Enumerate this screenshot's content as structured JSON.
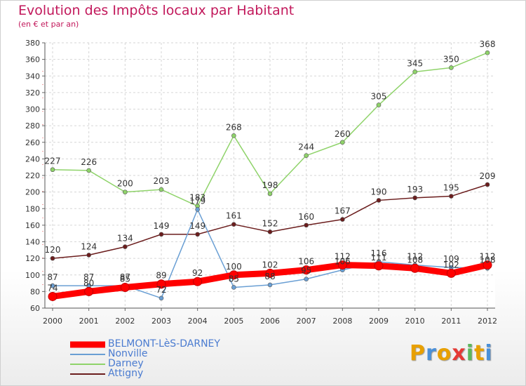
{
  "title": "Evolution des Impôts locaux par Habitant",
  "subtitle": "(en € et par an)",
  "logo_letters": [
    {
      "ch": "P",
      "color": "#e8a000"
    },
    {
      "ch": "r",
      "color": "#4a90d9"
    },
    {
      "ch": "o",
      "color": "#e8a000"
    },
    {
      "ch": "x",
      "color": "#e53935"
    },
    {
      "ch": "i",
      "color": "#5cb85c"
    },
    {
      "ch": "t",
      "color": "#e8a000"
    },
    {
      "ch": "i",
      "color": "#4a90d9"
    }
  ],
  "chart_data": {
    "type": "line",
    "x": [
      "2000",
      "2001",
      "2002",
      "2003",
      "2004",
      "2005",
      "2006",
      "2007",
      "2008",
      "2009",
      "2010",
      "2011",
      "2012"
    ],
    "ylim": [
      60,
      380
    ],
    "yticks": [
      60,
      80,
      100,
      120,
      140,
      160,
      180,
      200,
      220,
      240,
      260,
      280,
      300,
      320,
      340,
      360,
      380
    ],
    "grid": true,
    "legend_position": "bottom-left",
    "series": [
      {
        "name": "BELMONT-LèS-DARNEY",
        "color": "#ff0000",
        "line_width": 9,
        "marker_r": 6,
        "values": [
          74,
          80,
          85,
          89,
          92,
          100,
          102,
          106,
          112,
          111,
          108,
          102,
          112
        ]
      },
      {
        "name": "Nonville",
        "color": "#6a9fd4",
        "line_width": 1.5,
        "marker_r": 3,
        "values": [
          87,
          87,
          87,
          72,
          179,
          85,
          88,
          95,
          106,
          116,
          112,
          109,
          108
        ]
      },
      {
        "name": "Darney",
        "color": "#8fd36a",
        "line_width": 1.5,
        "marker_r": 3,
        "values": [
          227,
          226,
          200,
          203,
          183,
          268,
          198,
          244,
          260,
          305,
          345,
          350,
          368
        ]
      },
      {
        "name": "Attigny",
        "color": "#6b1d1d",
        "line_width": 1.5,
        "marker_r": 3,
        "values": [
          120,
          124,
          134,
          149,
          149,
          161,
          152,
          160,
          167,
          190,
          193,
          195,
          209
        ]
      }
    ]
  }
}
